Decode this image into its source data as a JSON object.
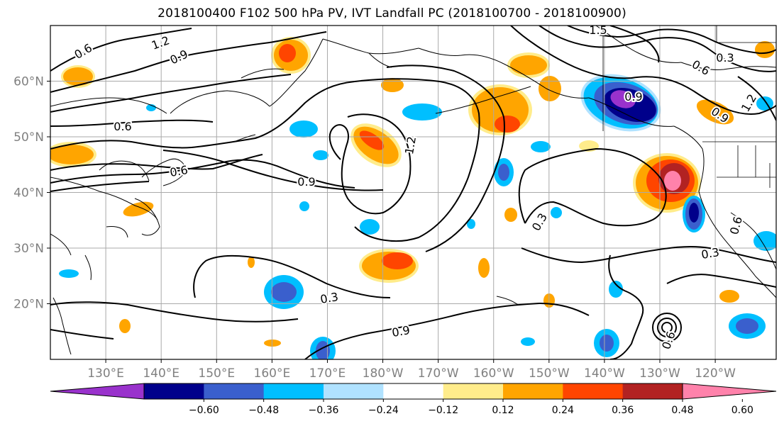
{
  "title": "2018100400 F102 500 hPa PV, IVT Landfall PC (2018100700 - 2018100900)",
  "lat_ticks": [
    {
      "label": "60°N",
      "lat": 60
    },
    {
      "label": "50°N",
      "lat": 50
    },
    {
      "label": "40°N",
      "lat": 40
    },
    {
      "label": "30°N",
      "lat": 30
    },
    {
      "label": "20°N",
      "lat": 20
    }
  ],
  "lon_ticks": [
    {
      "label": "130°E",
      "lon": 130
    },
    {
      "label": "140°E",
      "lon": 140
    },
    {
      "label": "150°E",
      "lon": 150
    },
    {
      "label": "160°E",
      "lon": 160
    },
    {
      "label": "170°E",
      "lon": 170
    },
    {
      "label": "180°W",
      "lon": 180
    },
    {
      "label": "170°W",
      "lon": 190
    },
    {
      "label": "160°W",
      "lon": 200
    },
    {
      "label": "150°W",
      "lon": 210
    },
    {
      "label": "140°W",
      "lon": 220
    },
    {
      "label": "130°W",
      "lon": 230
    },
    {
      "label": "120°W",
      "lon": 240
    }
  ],
  "map_extent": {
    "lon_min": 120,
    "lon_max": 251,
    "lat_min": 10,
    "lat_max": 70
  },
  "colorbar": {
    "labels": [
      "-0.60",
      "-0.48",
      "-0.36",
      "-0.24",
      "-0.12",
      "0.12",
      "0.24",
      "0.36",
      "0.48",
      "0.60"
    ],
    "colors": [
      "#9932cc",
      "#00008b",
      "#3a5fcd",
      "#00bfff",
      "#b0e2ff",
      "#ffffff",
      "#ffec8b",
      "#ffa500",
      "#ff4500",
      "#b22222",
      "#ff82ab"
    ]
  },
  "contour_labels": [
    "0.6",
    "1.2",
    "0.9",
    "1.5",
    "0.3",
    "0.6",
    "0.6",
    "0.9",
    "1.2",
    "0.6",
    "0.9",
    "1.2",
    "0.3",
    "0.6",
    "0.3",
    "0.3",
    "0.9",
    "0.6",
    "0.9"
  ]
}
